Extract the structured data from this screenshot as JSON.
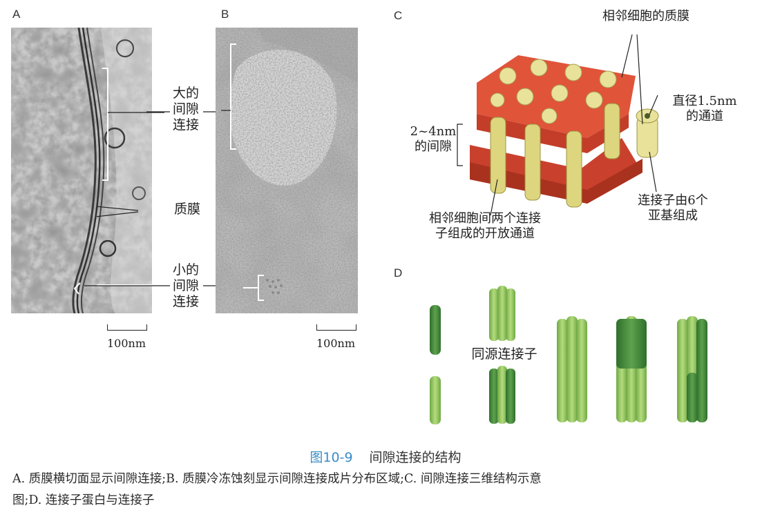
{
  "panels": {
    "a": {
      "letter": "A",
      "scale": "100nm"
    },
    "b": {
      "letter": "B",
      "scale": "100nm"
    },
    "c": {
      "letter": "C"
    },
    "d": {
      "letter": "D"
    }
  },
  "labels_ab": {
    "large_gap_junction": [
      "大的",
      "间隙",
      "连接"
    ],
    "plasma_membrane": "质膜",
    "small_gap_junction": [
      "小的",
      "间隙",
      "连接"
    ]
  },
  "labels_c": {
    "adjacent_membranes": "相邻细胞的质膜",
    "diameter": [
      "直径1.5nm",
      "的通道"
    ],
    "gap": [
      "2~4nm",
      "的间隙"
    ],
    "subunits": [
      "连接子由6个",
      "亚基组成"
    ],
    "open_channel": [
      "相邻细胞间两个连接",
      "子组成的开放通道"
    ]
  },
  "labels_d": {
    "homomeric": "同源连接子"
  },
  "colors": {
    "membrane": "#e0543a",
    "connexon": "#e8e29a",
    "rod_green": "#8cc25a",
    "rod_dark": "#3f8a3a",
    "caption_accent": "#3a8cc7"
  },
  "caption": {
    "figure_no": "图10-9",
    "title": "间隙连接的结构",
    "line1": "A. 质膜横切面显示间隙连接;B. 质膜冷冻蚀刻显示间隙连接成片分布区域;C. 间隙连接三维结构示意",
    "line2": "图;D. 连接子蛋白与连接子"
  }
}
